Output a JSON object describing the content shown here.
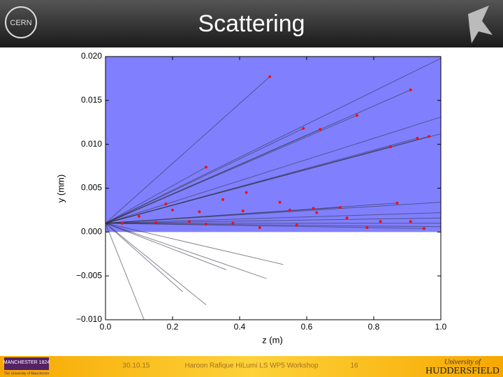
{
  "header": {
    "title": "Scattering",
    "logo_left": "CERN"
  },
  "footer": {
    "date": "30.10.15",
    "text": "Haroon Rafique HiLumi LS WP5 Workshop",
    "page": "16",
    "logo_left": "MANCHESTER 1824",
    "logo_left_sub": "The University of Manchester",
    "logo_right_top": "University of",
    "logo_right": "HUDDERSFIELD"
  },
  "chart_data": {
    "type": "line",
    "xlabel": "z (m)",
    "ylabel": "y (mm)",
    "xlim": [
      0,
      1
    ],
    "ylim": [
      -0.01,
      0.02
    ],
    "xticks": [
      {
        "value": 0,
        "label": "0.0"
      },
      0.2,
      0.4,
      0.6,
      0.8,
      {
        "value": 1,
        "label": "1.0"
      }
    ],
    "yticks": [
      {
        "value": -0.01,
        "label": "−0.010"
      },
      {
        "value": -0.005,
        "label": "−0.005"
      },
      {
        "value": 0,
        "label": "0.000"
      },
      0.005,
      {
        "value": 0.01,
        "label": "0.010"
      },
      0.015,
      {
        "value": 0.02,
        "label": "0.020"
      }
    ],
    "shade": {
      "color": "#8080ff",
      "above": 0
    },
    "line_color": "#333344",
    "series": [
      {
        "x": [
          0,
          0.49
        ],
        "values": [
          0.001,
          0.0177
        ]
      },
      {
        "x": [
          0,
          1.0
        ],
        "values": [
          0.001,
          0.0198
        ]
      },
      {
        "x": [
          0,
          0.91
        ],
        "values": [
          0.001,
          0.0162
        ]
      },
      {
        "x": [
          0,
          1.0
        ],
        "values": [
          0.001,
          0.0131
        ]
      },
      {
        "x": [
          0,
          1.0
        ],
        "values": [
          0.001,
          0.0112
        ]
      },
      {
        "x": [
          0,
          0.965
        ],
        "values": [
          0.001,
          0.0109
        ]
      },
      {
        "x": [
          0,
          0.93
        ],
        "values": [
          0.001,
          0.0107
        ]
      },
      {
        "x": [
          0,
          0.85
        ],
        "values": [
          0.001,
          0.0097
        ]
      },
      {
        "x": [
          0,
          0.75
        ],
        "values": [
          0.001,
          0.0133
        ]
      },
      {
        "x": [
          0,
          0.59
        ],
        "values": [
          0.001,
          0.0118
        ]
      },
      {
        "x": [
          0,
          0.64
        ],
        "values": [
          0.001,
          0.0117
        ]
      },
      {
        "x": [
          0,
          0.3
        ],
        "values": [
          0.001,
          0.0074
        ]
      },
      {
        "x": [
          0,
          1.0
        ],
        "values": [
          0.001,
          0.0034
        ]
      },
      {
        "x": [
          0,
          0.87
        ],
        "values": [
          0.001,
          0.0033
        ]
      },
      {
        "x": [
          0,
          0.7
        ],
        "values": [
          0.001,
          0.0028
        ]
      },
      {
        "x": [
          0,
          1.0
        ],
        "values": [
          0.001,
          0.0022
        ]
      },
      {
        "x": [
          0,
          1.0
        ],
        "values": [
          0.001,
          0.0016
        ]
      },
      {
        "x": [
          0,
          1.0
        ],
        "values": [
          0.001,
          0.001
        ]
      },
      {
        "x": [
          0,
          0.95
        ],
        "values": [
          0.001,
          0.0004
        ]
      },
      {
        "x": [
          0,
          1.0
        ],
        "values": [
          0.001,
          0.0006
        ]
      },
      {
        "x": [
          0,
          0.53
        ],
        "values": [
          0.001,
          -0.0037
        ]
      },
      {
        "x": [
          0,
          0.48
        ],
        "values": [
          0.001,
          -0.0053
        ]
      },
      {
        "x": [
          0,
          0.3
        ],
        "values": [
          0.001,
          -0.0083
        ]
      },
      {
        "x": [
          0,
          0.115
        ],
        "values": [
          0.001,
          -0.01
        ]
      },
      {
        "x": [
          0,
          0.36
        ],
        "values": [
          0.001,
          -0.0043
        ]
      },
      {
        "x": [
          0,
          0.23
        ],
        "values": [
          0.001,
          -0.0068
        ]
      }
    ],
    "points": {
      "color": "#ee1111",
      "x": [
        0.49,
        0.91,
        0.75,
        0.59,
        0.64,
        0.965,
        0.93,
        0.85,
        0.3,
        0.18,
        0.35,
        0.42,
        0.87,
        0.7,
        0.62,
        0.52,
        0.41,
        0.2,
        0.28,
        0.1,
        0.55,
        0.63,
        0.72,
        0.82,
        0.95,
        0.46,
        0.3,
        0.25,
        0.15,
        0.05,
        0.38,
        0.57,
        0.78,
        0.91
      ],
      "values": [
        0.0177,
        0.0162,
        0.0133,
        0.0118,
        0.0117,
        0.0109,
        0.0107,
        0.0097,
        0.0074,
        0.0032,
        0.0037,
        0.0045,
        0.0033,
        0.0028,
        0.0027,
        0.0034,
        0.0024,
        0.0025,
        0.0023,
        0.0018,
        0.0025,
        0.0022,
        0.0016,
        0.0012,
        0.0004,
        0.0005,
        0.0009,
        0.0012,
        0.0011,
        0.001,
        0.001,
        0.0008,
        0.0005,
        0.0012
      ]
    }
  }
}
